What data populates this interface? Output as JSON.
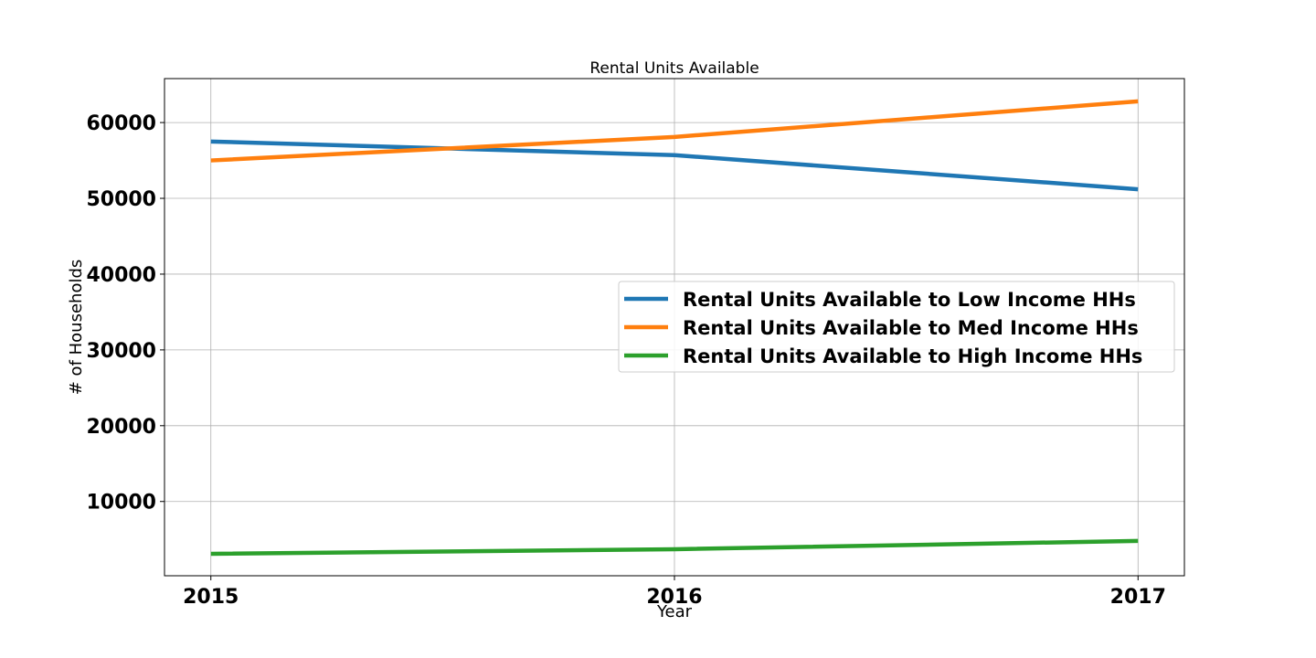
{
  "chart_data": {
    "type": "line",
    "title": "Rental Units Available",
    "xlabel": "Year",
    "ylabel": "# of Households",
    "x": [
      2015,
      2016,
      2017
    ],
    "x_tick_labels": [
      "2015",
      "2016",
      "2017"
    ],
    "y_tick_values": [
      10000,
      20000,
      30000,
      40000,
      50000,
      60000
    ],
    "y_tick_labels": [
      "10000",
      "20000",
      "30000",
      "40000",
      "50000",
      "60000"
    ],
    "xlim": [
      2014.9,
      2017.1
    ],
    "ylim": [
      200,
      65800
    ],
    "grid": true,
    "legend_position": "center-right",
    "series": [
      {
        "name": "Rental Units Available to Low Income HHs",
        "color": "#1f77b4",
        "values": [
          57500,
          55700,
          51200
        ]
      },
      {
        "name": "Rental Units Available to Med Income HHs",
        "color": "#ff7f0e",
        "values": [
          55000,
          58100,
          62800
        ]
      },
      {
        "name": "Rental Units Available to High Income HHs",
        "color": "#2ca02c",
        "values": [
          3100,
          3700,
          4800
        ]
      }
    ]
  }
}
